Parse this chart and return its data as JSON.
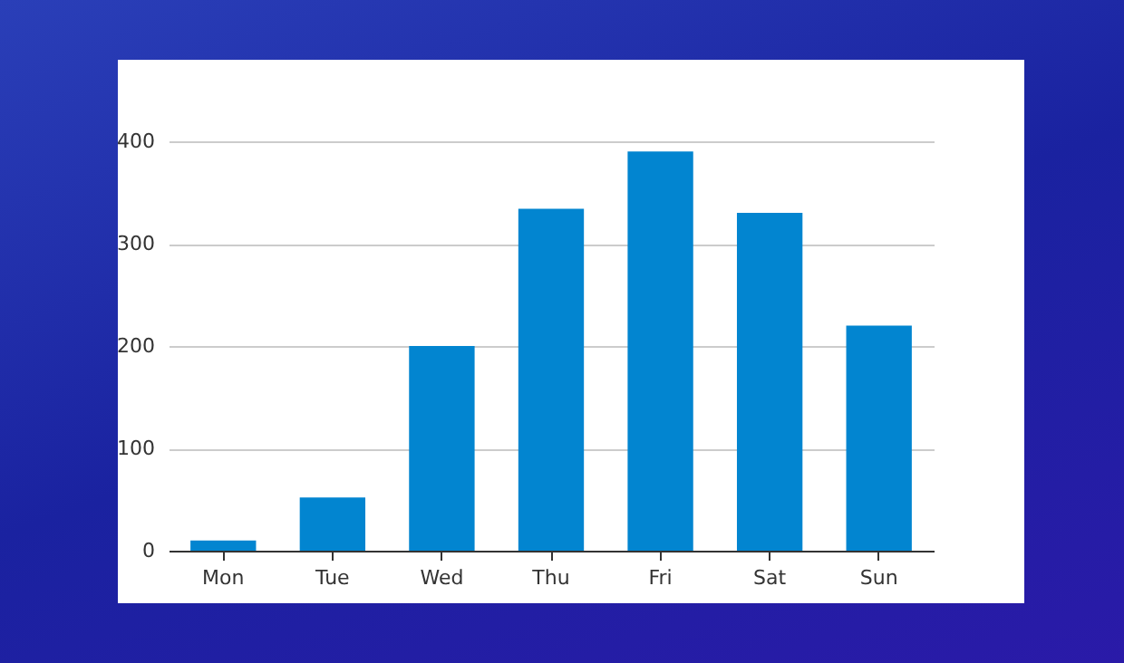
{
  "chart_data": {
    "type": "bar",
    "categories": [
      "Mon",
      "Tue",
      "Wed",
      "Thu",
      "Fri",
      "Sat",
      "Sun"
    ],
    "values": [
      10,
      52,
      200,
      334,
      390,
      330,
      220
    ],
    "color": "#0285d0",
    "ylim": [
      0,
      400
    ],
    "yticks": [
      0,
      100,
      200,
      300,
      400
    ],
    "grid": "y"
  }
}
